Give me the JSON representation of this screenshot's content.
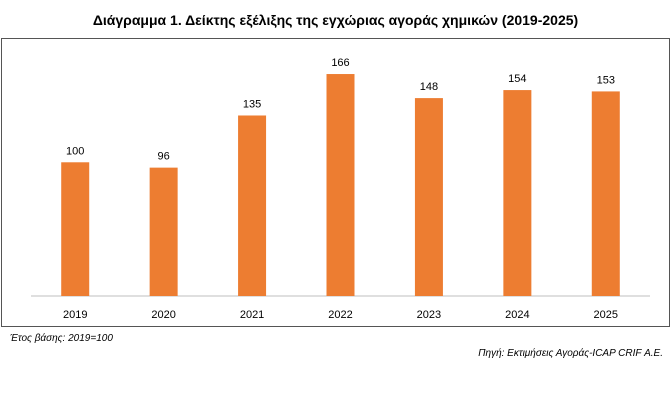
{
  "chart_data": {
    "type": "bar",
    "title": "Διάγραμμα 1. Δείκτης εξέλιξης της εγχώριας αγοράς χημικών (2019-2025)",
    "categories": [
      "2019",
      "2020",
      "2021",
      "2022",
      "2023",
      "2024",
      "2025"
    ],
    "values": [
      100,
      96,
      135,
      166,
      148,
      154,
      153
    ],
    "bar_color": "#ED7D31",
    "ylim": [
      0,
      175
    ],
    "data_labels": true,
    "grid": false,
    "legend": "none",
    "xlabel": "",
    "ylabel": ""
  },
  "notes": {
    "base": "Έτος βάσης: 2019=100",
    "source": "Πηγή: Εκτιμήσεις Αγοράς-ICAP CRIF Α.Ε."
  }
}
